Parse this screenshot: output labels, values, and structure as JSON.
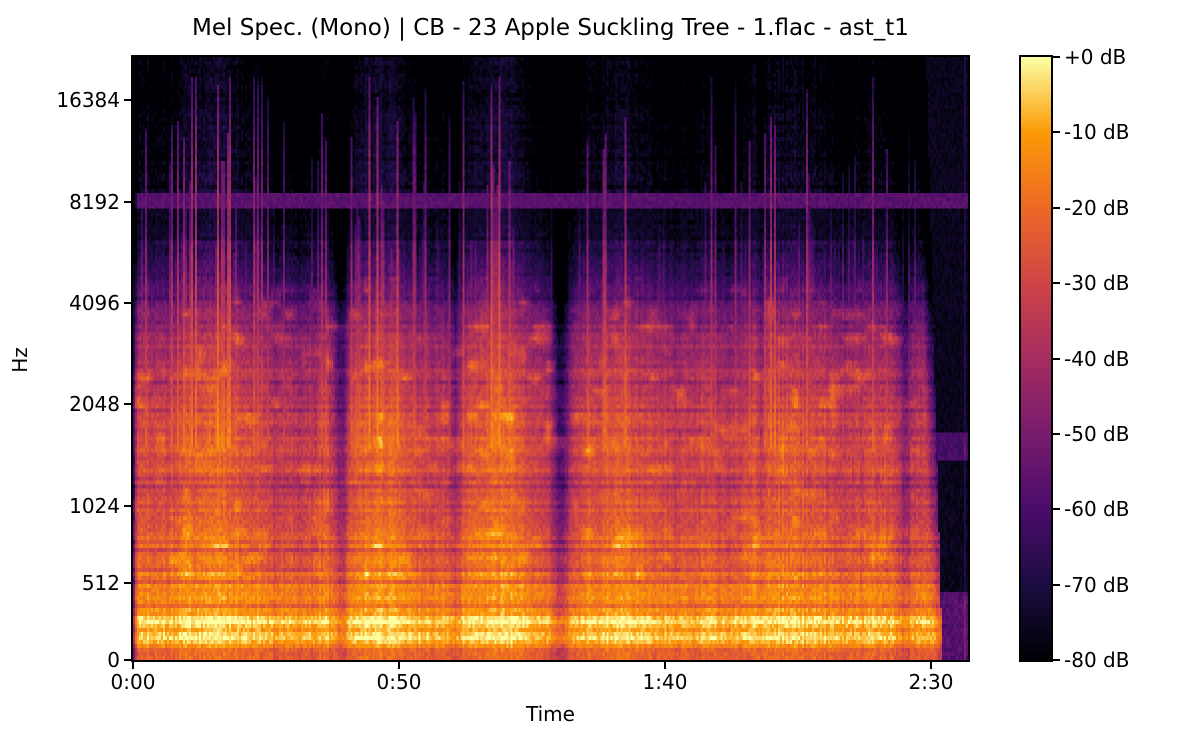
{
  "chart_data": {
    "type": "heatmap",
    "title": "Mel Spec. (Mono) | CB - 23 Apple Suckling Tree - 1.flac - ast_t1",
    "xlabel": "Time",
    "ylabel": "Hz",
    "y_scale": "mel",
    "x_ticks": [
      {
        "label": "0:00",
        "seconds": 0
      },
      {
        "label": "0:50",
        "seconds": 50
      },
      {
        "label": "1:40",
        "seconds": 100
      },
      {
        "label": "2:30",
        "seconds": 150
      }
    ],
    "y_ticks": [
      {
        "label": "16384",
        "hz": 16384
      },
      {
        "label": "8192",
        "hz": 8192
      },
      {
        "label": "4096",
        "hz": 4096
      },
      {
        "label": "2048",
        "hz": 2048
      },
      {
        "label": "1024",
        "hz": 1024
      },
      {
        "label": "512",
        "hz": 512
      },
      {
        "label": "0",
        "hz": 0
      }
    ],
    "duration_seconds": 157,
    "freq_max_hz": 22050,
    "colorbar": {
      "colormap": "inferno",
      "min_db": -80,
      "max_db": 0,
      "ticks": [
        {
          "label": "+0 dB",
          "db": 0
        },
        {
          "label": "-10 dB",
          "db": -10
        },
        {
          "label": "-20 dB",
          "db": -20
        },
        {
          "label": "-30 dB",
          "db": -30
        },
        {
          "label": "-40 dB",
          "db": -40
        },
        {
          "label": "-50 dB",
          "db": -50
        },
        {
          "label": "-60 dB",
          "db": -60
        },
        {
          "label": "-70 dB",
          "db": -70
        },
        {
          "label": "-80 dB",
          "db": -80
        }
      ],
      "stops": [
        "#000004",
        "#1b0c41",
        "#4a0c6b",
        "#781c6d",
        "#a52c60",
        "#cf4446",
        "#ed6925",
        "#fb9a06",
        "#fcffa4"
      ]
    },
    "features": {
      "seed": 12345,
      "bright_line_hz": 8192,
      "persistent_outro_bands_hz": [
        8192,
        1500,
        100
      ],
      "quiet_dips": [
        {
          "seconds": 38.9,
          "depth_db": 26,
          "width_s": 1.6
        },
        {
          "seconds": 60.5,
          "depth_db": 14,
          "width_s": 1.0
        },
        {
          "seconds": 80.3,
          "depth_db": 26,
          "width_s": 1.6
        },
        {
          "seconds": 118.0,
          "depth_db": 11,
          "width_s": 0.9
        },
        {
          "seconds": 145.1,
          "depth_db": 15,
          "width_s": 1.0
        }
      ],
      "audio_end_seconds": 152
    }
  }
}
